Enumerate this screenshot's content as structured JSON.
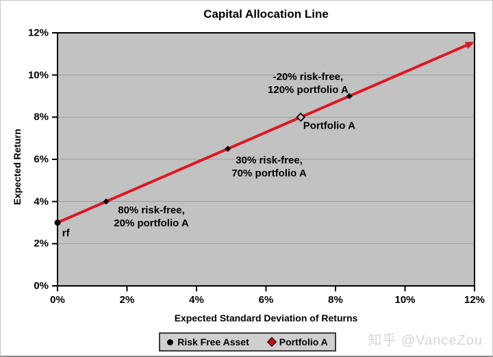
{
  "page": {
    "watermark": "知乎 @VanceZou"
  },
  "chart_data": {
    "type": "line",
    "title": "Capital Allocation Line",
    "xlabel": "Expected Standard Deviation of Returns",
    "ylabel": "Expected Return",
    "xlim": [
      0,
      12
    ],
    "ylim": [
      0,
      12
    ],
    "x_ticks": [
      0,
      2,
      4,
      6,
      8,
      10,
      12
    ],
    "y_ticks": [
      0,
      2,
      4,
      6,
      8,
      10,
      12
    ],
    "tick_suffix": "%",
    "grid": "horizontal",
    "colors": {
      "plot_bg": "#c2c2c2",
      "gridline": "#9a9a9a",
      "axis": "#000000",
      "cal_line": "#e01523",
      "marker_black": "#000000",
      "legend_bg": "#cfcfcf",
      "legend_border": "#3a3a3a"
    },
    "cal_line": {
      "start": {
        "x": 0,
        "y": 3
      },
      "end": {
        "x": 12,
        "y": 11.57
      },
      "width": 4,
      "arrow": true
    },
    "series": [
      {
        "name": "Risk Free Asset",
        "marker": "circle",
        "color": "#000000",
        "points": [
          {
            "x": 0,
            "y": 3
          }
        ]
      },
      {
        "name": "Portfolio A",
        "marker": "diamond-open",
        "color": "#000000",
        "points": [
          {
            "x": 7,
            "y": 8
          }
        ]
      },
      {
        "name": "intermediate-mix-points",
        "marker": "diamond",
        "color": "#000000",
        "points": [
          {
            "x": 1.4,
            "y": 4
          },
          {
            "x": 4.9,
            "y": 6.5
          },
          {
            "x": 8.4,
            "y": 9
          }
        ]
      }
    ],
    "annotations": [
      {
        "lines": [
          "rf"
        ],
        "x": 0.24,
        "y": 2.5
      },
      {
        "lines": [
          "80% risk-free,",
          "20% portfolio  A"
        ],
        "x": 2.7,
        "y": 3.26
      },
      {
        "lines": [
          "30% risk-free,",
          "70% portfolio  A"
        ],
        "x": 6.09,
        "y": 5.64
      },
      {
        "lines": [
          "-20% risk-free,",
          "120% portfolio  A"
        ],
        "x": 7.21,
        "y": 9.6
      },
      {
        "lines": [
          "Portfolio  A"
        ],
        "x": 7.82,
        "y": 7.59
      }
    ],
    "legend": {
      "position": "bottom",
      "entries": [
        {
          "label": "Risk Free Asset",
          "marker": "circle",
          "color": "#000000"
        },
        {
          "label": "Portfolio A",
          "marker": "diamond",
          "color": "#c40a18"
        }
      ]
    }
  }
}
